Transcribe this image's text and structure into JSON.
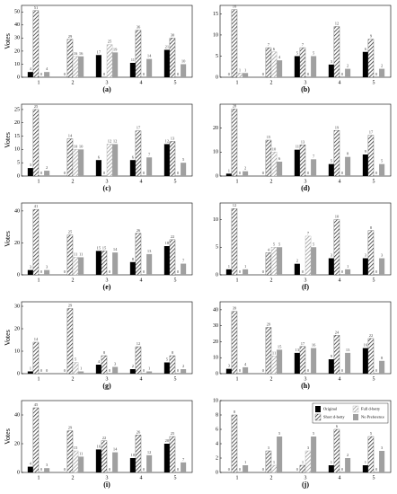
{
  "chart_data": [
    {
      "type": "bar",
      "title": "(a)",
      "ylabel": "Votes",
      "categories": [
        "1",
        "2",
        "3",
        "4",
        "5"
      ],
      "ylim": [
        0,
        55
      ],
      "yticks": [
        0,
        10,
        20,
        30,
        40,
        50
      ],
      "series": [
        {
          "color": "#000000",
          "values": [
            4,
            0,
            17,
            11,
            21
          ]
        },
        {
          "color": "#333333",
          "hatch": true,
          "values": [
            51,
            29,
            0,
            36,
            30
          ]
        },
        {
          "color": "#999999",
          "hatch": true,
          "values": [
            0,
            16,
            25,
            0,
            0
          ]
        },
        {
          "color": "#a0a0a0",
          "values": [
            4,
            16,
            19,
            14,
            10
          ]
        }
      ]
    },
    {
      "type": "bar",
      "title": "(b)",
      "categories": [
        "1",
        "2",
        "3",
        "4",
        "5"
      ],
      "ylim": [
        0,
        17
      ],
      "yticks": [
        0,
        5,
        10,
        15
      ],
      "series": [
        {
          "color": "#000000",
          "values": [
            0,
            0,
            5,
            3,
            6
          ]
        },
        {
          "color": "#333333",
          "hatch": true,
          "values": [
            16,
            7,
            7,
            12,
            9
          ]
        },
        {
          "color": "#999999",
          "hatch": true,
          "values": [
            1,
            6,
            0,
            0,
            0
          ]
        },
        {
          "color": "#a0a0a0",
          "values": [
            1,
            4,
            5,
            2,
            2
          ]
        }
      ]
    },
    {
      "type": "bar",
      "title": "(c)",
      "ylabel": "Votes",
      "categories": [
        "1",
        "2",
        "3",
        "4",
        "5"
      ],
      "ylim": [
        0,
        27
      ],
      "yticks": [
        0,
        5,
        10,
        15,
        20,
        25
      ],
      "series": [
        {
          "color": "#000000",
          "values": [
            3,
            0,
            6,
            6,
            12
          ]
        },
        {
          "color": "#333333",
          "hatch": true,
          "values": [
            25,
            14,
            0,
            17,
            13
          ]
        },
        {
          "color": "#999999",
          "hatch": true,
          "values": [
            0,
            10,
            12,
            0,
            0
          ]
        },
        {
          "color": "#a0a0a0",
          "values": [
            2,
            10,
            12,
            7,
            5
          ]
        }
      ]
    },
    {
      "type": "bar",
      "title": "(d)",
      "categories": [
        "1",
        "2",
        "3",
        "4",
        "5"
      ],
      "ylim": [
        0,
        30
      ],
      "yticks": [
        0,
        10,
        20
      ],
      "series": [
        {
          "color": "#000000",
          "values": [
            1,
            0,
            11,
            5,
            9
          ]
        },
        {
          "color": "#333333",
          "hatch": true,
          "values": [
            28,
            15,
            13,
            19,
            17
          ]
        },
        {
          "color": "#999999",
          "hatch": true,
          "values": [
            0,
            10,
            0,
            0,
            0
          ]
        },
        {
          "color": "#a0a0a0",
          "values": [
            2,
            6,
            7,
            8,
            5
          ]
        }
      ]
    },
    {
      "type": "bar",
      "title": "(e)",
      "ylabel": "Votes",
      "categories": [
        "1",
        "2",
        "3",
        "4",
        "5"
      ],
      "ylim": [
        0,
        45
      ],
      "yticks": [
        0,
        20,
        40
      ],
      "series": [
        {
          "color": "#000000",
          "values": [
            3,
            0,
            15,
            8,
            18
          ]
        },
        {
          "color": "#333333",
          "hatch": true,
          "values": [
            41,
            25,
            15,
            26,
            22
          ]
        },
        {
          "color": "#999999",
          "hatch": true,
          "values": [
            0,
            11,
            0,
            0,
            0
          ]
        },
        {
          "color": "#a0a0a0",
          "values": [
            3,
            11,
            14,
            13,
            7
          ]
        }
      ]
    },
    {
      "type": "bar",
      "title": "(f)",
      "categories": [
        "1",
        "2",
        "3",
        "4",
        "5"
      ],
      "ylim": [
        0,
        13
      ],
      "yticks": [
        0,
        5,
        10
      ],
      "series": [
        {
          "color": "#000000",
          "values": [
            1,
            0,
            2,
            3,
            3
          ]
        },
        {
          "color": "#333333",
          "hatch": true,
          "values": [
            12,
            4,
            0,
            10,
            8
          ]
        },
        {
          "color": "#999999",
          "hatch": true,
          "values": [
            0,
            5,
            7,
            0,
            0
          ]
        },
        {
          "color": "#a0a0a0",
          "values": [
            1,
            5,
            5,
            1,
            3
          ]
        }
      ]
    },
    {
      "type": "bar",
      "title": "(g)",
      "ylabel": "Votes",
      "categories": [
        "1",
        "2",
        "3",
        "4",
        "5"
      ],
      "ylim": [
        0,
        32
      ],
      "yticks": [
        0,
        10,
        20,
        30
      ],
      "series": [
        {
          "color": "#000000",
          "values": [
            1,
            0,
            4,
            2,
            5
          ]
        },
        {
          "color": "#333333",
          "hatch": true,
          "values": [
            14,
            29,
            8,
            12,
            8
          ]
        },
        {
          "color": "#999999",
          "hatch": true,
          "values": [
            0,
            5,
            0,
            0,
            0
          ]
        },
        {
          "color": "#a0a0a0",
          "values": [
            0,
            1,
            3,
            1,
            2
          ]
        }
      ]
    },
    {
      "type": "bar",
      "title": "(h)",
      "categories": [
        "1",
        "2",
        "3",
        "4",
        "5"
      ],
      "ylim": [
        0,
        45
      ],
      "yticks": [
        0,
        10,
        20,
        30,
        40
      ],
      "series": [
        {
          "color": "#000000",
          "values": [
            3,
            0,
            13,
            9,
            16
          ]
        },
        {
          "color": "#333333",
          "hatch": true,
          "values": [
            39,
            29,
            17,
            24,
            22
          ]
        },
        {
          "color": "#999999",
          "hatch": true,
          "values": [
            0,
            11,
            0,
            0,
            0
          ]
        },
        {
          "color": "#a0a0a0",
          "values": [
            4,
            15,
            16,
            13,
            8
          ]
        }
      ]
    },
    {
      "type": "bar",
      "title": "(i)",
      "ylabel": "Votes",
      "categories": [
        "1",
        "2",
        "3",
        "4",
        "5"
      ],
      "ylim": [
        0,
        50
      ],
      "yticks": [
        0,
        20,
        40
      ],
      "series": [
        {
          "color": "#000000",
          "values": [
            4,
            0,
            16,
            10,
            20
          ]
        },
        {
          "color": "#333333",
          "hatch": true,
          "values": [
            45,
            29,
            22,
            26,
            25
          ]
        },
        {
          "color": "#999999",
          "hatch": true,
          "values": [
            0,
            15,
            0,
            0,
            0
          ]
        },
        {
          "color": "#a0a0a0",
          "values": [
            3,
            11,
            14,
            12,
            7
          ]
        }
      ]
    },
    {
      "type": "bar",
      "title": "(j)",
      "categories": [
        "1",
        "2",
        "3",
        "4",
        "5"
      ],
      "ylim": [
        0,
        10
      ],
      "yticks": [
        0,
        2,
        4,
        6,
        8,
        10
      ],
      "legend": "upper right",
      "series": [
        {
          "name": "Original",
          "color": "#000000",
          "values": [
            0,
            0,
            0,
            1,
            1
          ]
        },
        {
          "name": "Short d-betty",
          "color": "#333333",
          "hatch": true,
          "values": [
            8,
            3,
            1,
            6,
            5
          ]
        },
        {
          "name": "Full d-betty",
          "color": "#999999",
          "hatch": true,
          "values": [
            0,
            1,
            3,
            0,
            0
          ]
        },
        {
          "name": "No Preference",
          "color": "#a0a0a0",
          "values": [
            1,
            5,
            5,
            2,
            3
          ]
        }
      ]
    }
  ]
}
